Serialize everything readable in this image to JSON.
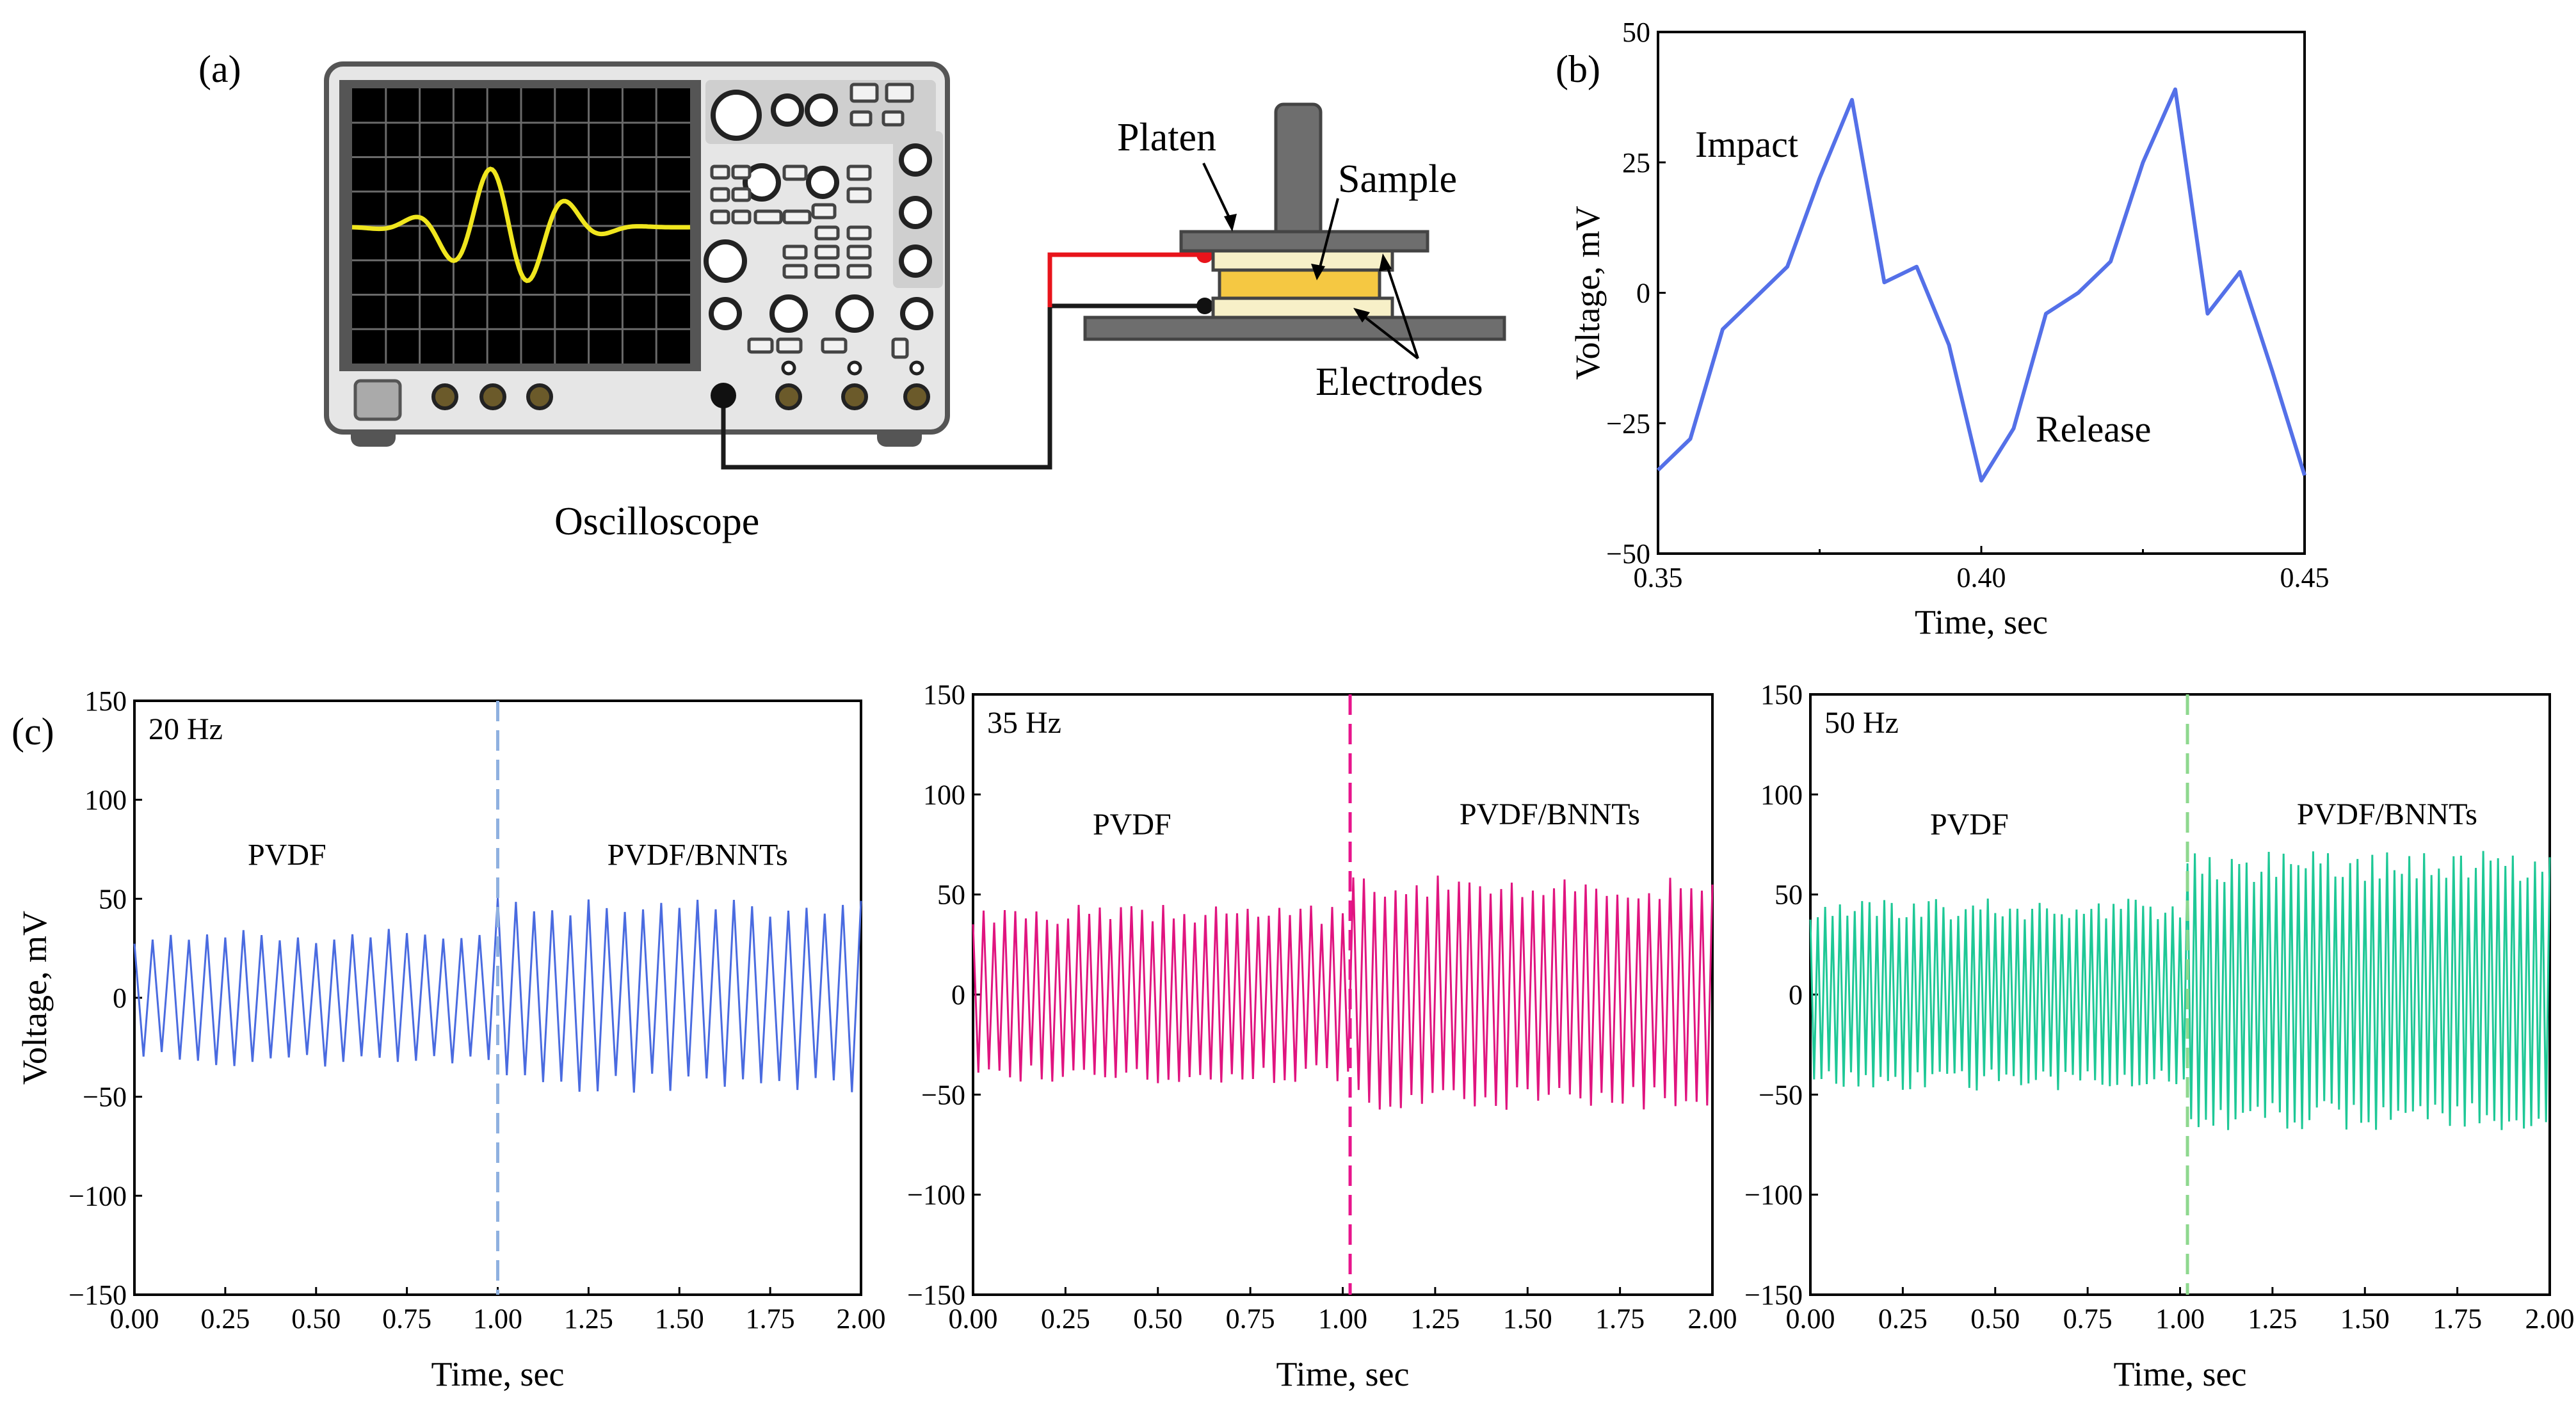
{
  "figure": {
    "panel_a": {
      "label": "(a)",
      "oscilloscope_label": "Oscilloscope",
      "platen_label": "Platen",
      "sample_label": "Sample",
      "electrodes_label": "Electrodes",
      "colors": {
        "screen": "#000000",
        "trace": "#f0e61e",
        "body": "#e6e6e6",
        "red_wire": "#e8141b",
        "black_wire": "#1a1a1a",
        "sample": "#f5c842",
        "electrode": "#f7f0c8",
        "platen": "#6e6e6e"
      }
    },
    "panel_b": {
      "label": "(b)",
      "impact_label": "Impact",
      "release_label": "Release"
    },
    "panel_c": {
      "label": "(c)"
    }
  },
  "chart_data": [
    {
      "id": "b",
      "type": "line",
      "xlabel": "Time, sec",
      "ylabel": "Voltage, mV",
      "xlim": [
        0.35,
        0.45
      ],
      "ylim": [
        -50,
        50
      ],
      "xticks": [
        "0.35",
        "0.40",
        "0.45"
      ],
      "yticks": [
        "50",
        "25",
        "0",
        "−25",
        "−50"
      ],
      "xtick_values": [
        0.35,
        0.4,
        0.45
      ],
      "ytick_values": [
        50,
        25,
        0,
        -25,
        -50
      ],
      "color": "#5470e8",
      "x": [
        0.35,
        0.355,
        0.36,
        0.365,
        0.37,
        0.375,
        0.38,
        0.385,
        0.39,
        0.395,
        0.4,
        0.405,
        0.41,
        0.415,
        0.42,
        0.425,
        0.43,
        0.435,
        0.44,
        0.445,
        0.45
      ],
      "y": [
        -34,
        -28,
        -7,
        -1,
        5,
        22,
        37,
        2,
        5,
        -10,
        -36,
        -26,
        -4,
        0,
        6,
        25,
        39,
        -4,
        4,
        -15,
        -35
      ]
    },
    {
      "id": "c1",
      "type": "line",
      "annotation": "20 Hz",
      "xlabel": "Time, sec",
      "ylabel": "Voltage, mV",
      "xlim": [
        0,
        2
      ],
      "ylim": [
        -150,
        150
      ],
      "xticks": [
        "0.00",
        "0.25",
        "0.50",
        "0.75",
        "1.00",
        "1.25",
        "1.50",
        "1.75",
        "2.00"
      ],
      "yticks": [
        "150",
        "100",
        "50",
        "0",
        "−50",
        "−100",
        "−150"
      ],
      "xtick_values": [
        0,
        0.25,
        0.5,
        0.75,
        1.0,
        1.25,
        1.5,
        1.75,
        2.0
      ],
      "ytick_values": [
        150,
        100,
        50,
        0,
        -50,
        -100,
        -150
      ],
      "divider_x": 1.0,
      "divider_color": "#8fb1e0",
      "color": "#4a6be0",
      "frequency_hz": 20,
      "series": [
        {
          "name": "PVDF",
          "x_range": [
            0,
            1.0
          ],
          "amplitude_mV": [
            -35,
            35
          ]
        },
        {
          "name": "PVDF/BNNTs",
          "x_range": [
            1.0,
            2.0
          ],
          "amplitude_mV": [
            -48,
            52
          ]
        }
      ]
    },
    {
      "id": "c2",
      "type": "line",
      "annotation": "35 Hz",
      "xlabel": "Time, sec",
      "xlim": [
        0,
        2
      ],
      "ylim": [
        -150,
        150
      ],
      "xticks": [
        "0.00",
        "0.25",
        "0.50",
        "0.75",
        "1.00",
        "1.25",
        "1.50",
        "1.75",
        "2.00"
      ],
      "yticks": [
        "150",
        "100",
        "50",
        "0",
        "−50",
        "−100",
        "−150"
      ],
      "xtick_values": [
        0,
        0.25,
        0.5,
        0.75,
        1.0,
        1.25,
        1.5,
        1.75,
        2.0
      ],
      "ytick_values": [
        150,
        100,
        50,
        0,
        -50,
        -100,
        -150
      ],
      "divider_x": 1.02,
      "divider_color": "#e8148c",
      "color": "#e0147f",
      "frequency_hz": 35,
      "series": [
        {
          "name": "PVDF",
          "x_range": [
            0,
            1.02
          ],
          "amplitude_mV": [
            -45,
            45
          ]
        },
        {
          "name": "PVDF/BNNTs",
          "x_range": [
            1.02,
            2.0
          ],
          "amplitude_mV": [
            -58,
            60
          ]
        }
      ]
    },
    {
      "id": "c3",
      "type": "line",
      "annotation": "50 Hz",
      "xlabel": "Time, sec",
      "xlim": [
        0,
        2
      ],
      "ylim": [
        -150,
        150
      ],
      "xticks": [
        "0.00",
        "0.25",
        "0.50",
        "0.75",
        "1.00",
        "1.25",
        "1.50",
        "1.75",
        "2.00"
      ],
      "yticks": [
        "150",
        "100",
        "50",
        "0",
        "−50",
        "−100",
        "−150"
      ],
      "xtick_values": [
        0,
        0.25,
        0.5,
        0.75,
        1.0,
        1.25,
        1.5,
        1.75,
        2.0
      ],
      "ytick_values": [
        150,
        100,
        50,
        0,
        -50,
        -100,
        -150
      ],
      "divider_x": 1.02,
      "divider_color": "#8ed88e",
      "color": "#1ec896",
      "frequency_hz": 50,
      "series": [
        {
          "name": "PVDF",
          "x_range": [
            0,
            1.02
          ],
          "amplitude_mV": [
            -48,
            48
          ]
        },
        {
          "name": "PVDF/BNNTs",
          "x_range": [
            1.02,
            2.0
          ],
          "amplitude_mV": [
            -68,
            72
          ]
        }
      ]
    }
  ]
}
